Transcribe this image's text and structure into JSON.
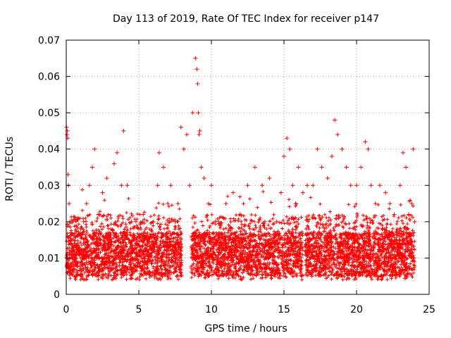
{
  "chart_data": {
    "type": "scatter",
    "title": "Day 113 of 2019, Rate Of TEC Index for receiver p147",
    "xlabel": "GPS time / hours",
    "ylabel": "ROTI / TECUs",
    "xlim": [
      0,
      25
    ],
    "ylim": [
      0,
      0.07
    ],
    "x_ticks": [
      0,
      5,
      10,
      15,
      20,
      25
    ],
    "y_ticks": [
      0,
      0.01,
      0.02,
      0.03,
      0.04,
      0.05,
      0.06,
      0.07
    ],
    "x_tick_labels": [
      "0",
      "5",
      "10",
      "15",
      "20",
      "25"
    ],
    "y_tick_labels": [
      "0",
      "0.01",
      "0.02",
      "0.03",
      "0.04",
      "0.05",
      "0.06",
      "0.07"
    ],
    "grid": true,
    "marker": "+",
    "color": "#ff0000",
    "series": [
      {
        "name": "ROTI",
        "x": [
          0.02,
          0.05,
          0.08,
          0.1,
          0.12,
          0.15,
          0.2,
          0.25,
          0.3,
          0.4,
          0.5,
          0.6,
          0.7,
          0.8,
          1.0,
          1.2,
          1.4,
          1.6,
          1.8,
          1.95,
          2.2,
          2.5,
          2.8,
          3.0,
          3.3,
          3.5,
          3.8,
          3.95,
          4.2,
          4.5,
          4.8,
          5.0,
          5.3,
          5.6,
          6.0,
          6.3,
          6.4,
          6.7,
          7.0,
          7.2,
          7.5,
          7.7,
          7.9,
          8.1,
          8.3,
          8.5,
          8.7,
          8.9,
          9.0,
          9.05,
          9.1,
          9.15,
          9.2,
          9.3,
          9.5,
          9.8,
          10.0,
          10.5,
          11.0,
          11.5,
          12.0,
          12.5,
          13.0,
          13.5,
          14.0,
          14.5,
          14.8,
          15.0,
          15.2,
          15.4,
          15.6,
          15.8,
          16.0,
          16.3,
          16.6,
          17.0,
          17.3,
          17.6,
          18.0,
          18.3,
          18.5,
          18.7,
          19.0,
          19.3,
          19.6,
          20.0,
          20.3,
          20.6,
          20.8,
          21.0,
          21.3,
          21.6,
          22.0,
          22.3,
          22.6,
          23.0,
          23.2,
          23.4,
          23.6,
          23.8,
          23.9,
          24.0
        ],
        "y": [
          0.046,
          0.044,
          0.045,
          0.043,
          0.033,
          0.03,
          0.025,
          0.02,
          0.015,
          0.012,
          0.01,
          0.009,
          0.011,
          0.014,
          0.018,
          0.02,
          0.025,
          0.03,
          0.035,
          0.04,
          0.022,
          0.028,
          0.032,
          0.015,
          0.036,
          0.039,
          0.03,
          0.045,
          0.03,
          0.02,
          0.014,
          0.018,
          0.022,
          0.015,
          0.02,
          0.03,
          0.039,
          0.035,
          0.025,
          0.03,
          0.02,
          0.025,
          0.046,
          0.04,
          0.044,
          0.03,
          0.05,
          0.065,
          0.062,
          0.058,
          0.05,
          0.044,
          0.045,
          0.035,
          0.032,
          0.025,
          0.03,
          0.02,
          0.025,
          0.028,
          0.022,
          0.03,
          0.035,
          0.03,
          0.032,
          0.02,
          0.028,
          0.038,
          0.043,
          0.04,
          0.03,
          0.025,
          0.035,
          0.028,
          0.03,
          0.03,
          0.04,
          0.035,
          0.032,
          0.038,
          0.048,
          0.044,
          0.04,
          0.035,
          0.03,
          0.03,
          0.035,
          0.042,
          0.04,
          0.03,
          0.025,
          0.03,
          0.028,
          0.025,
          0.022,
          0.03,
          0.039,
          0.035,
          0.022,
          0.025,
          0.04,
          0.02
        ]
      }
    ],
    "baseline_note": "dense cloud of points between ~0.005 and ~0.02 TECU/min over the whole day"
  }
}
